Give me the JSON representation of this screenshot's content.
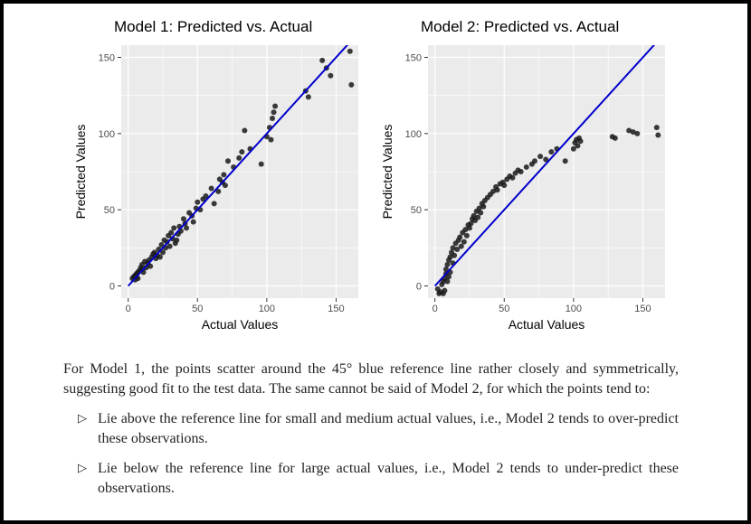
{
  "chart_data": [
    {
      "type": "scatter",
      "title": "Model 1: Predicted vs. Actual",
      "xlabel": "Actual Values",
      "ylabel": "Predicted Values",
      "xlim": [
        -5,
        166
      ],
      "ylim": [
        -8,
        158
      ],
      "xticks": [
        0,
        50,
        100,
        150
      ],
      "yticks": [
        0,
        50,
        100,
        150
      ],
      "grid": true,
      "reference_line": {
        "from": [
          0,
          0
        ],
        "to": [
          162,
          162
        ],
        "color": "#0000cc"
      },
      "points": [
        [
          3,
          5
        ],
        [
          4,
          6
        ],
        [
          5,
          4
        ],
        [
          5,
          7
        ],
        [
          6,
          6
        ],
        [
          6,
          8
        ],
        [
          7,
          9
        ],
        [
          7,
          5
        ],
        [
          8,
          10
        ],
        [
          9,
          12
        ],
        [
          10,
          11
        ],
        [
          10,
          14
        ],
        [
          11,
          9
        ],
        [
          12,
          16
        ],
        [
          13,
          12
        ],
        [
          14,
          15
        ],
        [
          15,
          17
        ],
        [
          16,
          13
        ],
        [
          17,
          19
        ],
        [
          18,
          21
        ],
        [
          19,
          22
        ],
        [
          20,
          18
        ],
        [
          21,
          20
        ],
        [
          22,
          24
        ],
        [
          23,
          19
        ],
        [
          24,
          27
        ],
        [
          25,
          22
        ],
        [
          26,
          30
        ],
        [
          27,
          25
        ],
        [
          28,
          29
        ],
        [
          29,
          33
        ],
        [
          30,
          26
        ],
        [
          31,
          35
        ],
        [
          32,
          31
        ],
        [
          33,
          38
        ],
        [
          34,
          28
        ],
        [
          35,
          30
        ],
        [
          36,
          34
        ],
        [
          37,
          39
        ],
        [
          38,
          36
        ],
        [
          40,
          44
        ],
        [
          41,
          41
        ],
        [
          42,
          38
        ],
        [
          44,
          48
        ],
        [
          46,
          46
        ],
        [
          47,
          42
        ],
        [
          49,
          51
        ],
        [
          50,
          55
        ],
        [
          52,
          50
        ],
        [
          54,
          57
        ],
        [
          56,
          59
        ],
        [
          60,
          64
        ],
        [
          62,
          54
        ],
        [
          65,
          62
        ],
        [
          66,
          70
        ],
        [
          68,
          68
        ],
        [
          69,
          73
        ],
        [
          70,
          66
        ],
        [
          72,
          82
        ],
        [
          76,
          78
        ],
        [
          80,
          84
        ],
        [
          82,
          88
        ],
        [
          84,
          102
        ],
        [
          88,
          90
        ],
        [
          96,
          80
        ],
        [
          100,
          98
        ],
        [
          102,
          104
        ],
        [
          103,
          96
        ],
        [
          104,
          110
        ],
        [
          105,
          114
        ],
        [
          106,
          118
        ],
        [
          128,
          128
        ],
        [
          130,
          124
        ],
        [
          140,
          148
        ],
        [
          143,
          143
        ],
        [
          146,
          138
        ],
        [
          160,
          154
        ],
        [
          161,
          132
        ]
      ]
    },
    {
      "type": "scatter",
      "title": "Model 2: Predicted vs. Actual",
      "xlabel": "Actual Values",
      "ylabel": "Predicted Values",
      "xlim": [
        -5,
        166
      ],
      "ylim": [
        -8,
        158
      ],
      "xticks": [
        0,
        50,
        100,
        150
      ],
      "yticks": [
        0,
        50,
        100,
        150
      ],
      "grid": true,
      "reference_line": {
        "from": [
          0,
          0
        ],
        "to": [
          162,
          162
        ],
        "color": "#0000cc"
      },
      "points": [
        [
          2,
          -2
        ],
        [
          3,
          -5
        ],
        [
          4,
          -4
        ],
        [
          5,
          1
        ],
        [
          6,
          -5
        ],
        [
          6,
          3
        ],
        [
          7,
          5
        ],
        [
          7,
          -3
        ],
        [
          8,
          8
        ],
        [
          8,
          11
        ],
        [
          9,
          14
        ],
        [
          9,
          3
        ],
        [
          10,
          17
        ],
        [
          10,
          6
        ],
        [
          11,
          19
        ],
        [
          11,
          9
        ],
        [
          12,
          22
        ],
        [
          13,
          15
        ],
        [
          13,
          25
        ],
        [
          14,
          20
        ],
        [
          15,
          28
        ],
        [
          16,
          24
        ],
        [
          17,
          30
        ],
        [
          18,
          32
        ],
        [
          19,
          26
        ],
        [
          20,
          35
        ],
        [
          21,
          29
        ],
        [
          22,
          37
        ],
        [
          23,
          33
        ],
        [
          24,
          40
        ],
        [
          25,
          38
        ],
        [
          26,
          41
        ],
        [
          27,
          44
        ],
        [
          28,
          46
        ],
        [
          29,
          43
        ],
        [
          30,
          49
        ],
        [
          31,
          45
        ],
        [
          32,
          51
        ],
        [
          33,
          48
        ],
        [
          34,
          54
        ],
        [
          35,
          52
        ],
        [
          36,
          56
        ],
        [
          38,
          58
        ],
        [
          40,
          60
        ],
        [
          42,
          62
        ],
        [
          44,
          65
        ],
        [
          45,
          63
        ],
        [
          47,
          67
        ],
        [
          49,
          68
        ],
        [
          50,
          66
        ],
        [
          52,
          70
        ],
        [
          54,
          72
        ],
        [
          56,
          71
        ],
        [
          58,
          74
        ],
        [
          60,
          76
        ],
        [
          62,
          75
        ],
        [
          66,
          78
        ],
        [
          70,
          80
        ],
        [
          72,
          82
        ],
        [
          76,
          85
        ],
        [
          80,
          83
        ],
        [
          84,
          88
        ],
        [
          88,
          90
        ],
        [
          94,
          82
        ],
        [
          100,
          90
        ],
        [
          101,
          94
        ],
        [
          102,
          96
        ],
        [
          103,
          92
        ],
        [
          104,
          97
        ],
        [
          105,
          95
        ],
        [
          128,
          98
        ],
        [
          130,
          97
        ],
        [
          140,
          102
        ],
        [
          143,
          101
        ],
        [
          146,
          100
        ],
        [
          160,
          104
        ],
        [
          161,
          99
        ]
      ]
    }
  ],
  "text": {
    "paragraph": "For Model 1, the points scatter around the 45° blue reference line rather closely and symmetrically, suggesting good fit to the test data. The same cannot be said of Model 2, for which the points tend to:",
    "bullets": [
      "Lie above the reference line for small and medium actual values, i.e., Model 2 tends to over-predict these observations.",
      "Lie below the reference line for large actual values, i.e., Model 2 tends to under-predict these observations."
    ],
    "bullet_glyph": "▷"
  },
  "colors": {
    "panel_bg": "#ebebeb",
    "grid": "#ffffff",
    "point": "#1a1a1a",
    "reference_line": "#0000cc"
  }
}
